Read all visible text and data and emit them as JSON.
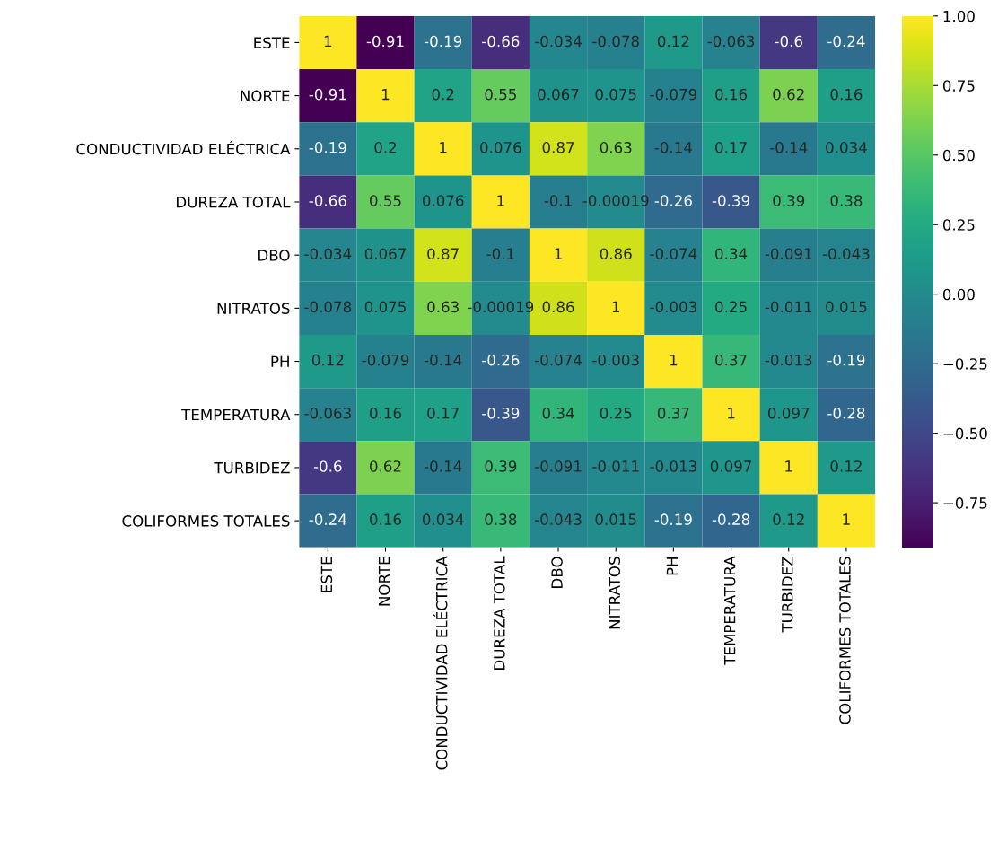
{
  "chart_data": {
    "type": "heatmap",
    "categories": [
      "ESTE",
      "NORTE",
      "CONDUCTIVIDAD ELÉCTRICA",
      "DUREZA TOTAL",
      "DBO",
      "NITRATOS",
      "PH",
      "TEMPERATURA",
      "TURBIDEZ",
      "COLIFORMES TOTALES"
    ],
    "y_categories": [
      "ESTE",
      "NORTE",
      "CONDUCTIVIDAD ELÉCTRICA",
      "DUREZA TOTAL",
      "DBO",
      "NITRATOS",
      "PH",
      "TEMPERATURA",
      "TURBIDEZ",
      "COLIFORMES TOTALES"
    ],
    "cells": [
      [
        1,
        -0.91,
        -0.19,
        -0.66,
        -0.034,
        -0.078,
        0.12,
        -0.063,
        -0.6,
        -0.24
      ],
      [
        -0.91,
        1,
        0.2,
        0.55,
        0.067,
        0.075,
        -0.079,
        0.16,
        0.62,
        0.16
      ],
      [
        -0.19,
        0.2,
        1,
        0.076,
        0.87,
        0.63,
        -0.14,
        0.17,
        -0.14,
        0.034
      ],
      [
        -0.66,
        0.55,
        0.076,
        1,
        -0.1,
        -0.00019,
        -0.26,
        -0.39,
        0.39,
        0.38
      ],
      [
        -0.034,
        0.067,
        0.87,
        -0.1,
        1,
        0.86,
        -0.074,
        0.34,
        -0.091,
        -0.043
      ],
      [
        -0.078,
        0.075,
        0.63,
        -0.00019,
        0.86,
        1,
        -0.003,
        0.25,
        -0.011,
        0.015
      ],
      [
        0.12,
        -0.079,
        -0.14,
        -0.26,
        -0.074,
        -0.003,
        1,
        0.37,
        -0.013,
        -0.19
      ],
      [
        -0.063,
        0.16,
        0.17,
        -0.39,
        0.34,
        0.25,
        0.37,
        1,
        0.097,
        -0.28
      ],
      [
        -0.6,
        0.62,
        -0.14,
        0.39,
        -0.091,
        -0.011,
        -0.013,
        0.097,
        1,
        0.12
      ],
      [
        -0.24,
        0.16,
        0.034,
        0.38,
        -0.043,
        0.015,
        -0.19,
        -0.28,
        0.12,
        1
      ]
    ],
    "clim": [
      -0.91,
      1
    ],
    "cticks": [
      {
        "value": -0.75,
        "label": "−0.75"
      },
      {
        "value": -0.5,
        "label": "−0.50"
      },
      {
        "value": -0.25,
        "label": "−0.25"
      },
      {
        "value": 0,
        "label": "0.00"
      },
      {
        "value": 0.25,
        "label": "0.25"
      },
      {
        "value": 0.5,
        "label": "0.50"
      },
      {
        "value": 0.75,
        "label": "0.75"
      },
      {
        "value": 1,
        "label": "1.00"
      }
    ],
    "data_labels": true
  }
}
